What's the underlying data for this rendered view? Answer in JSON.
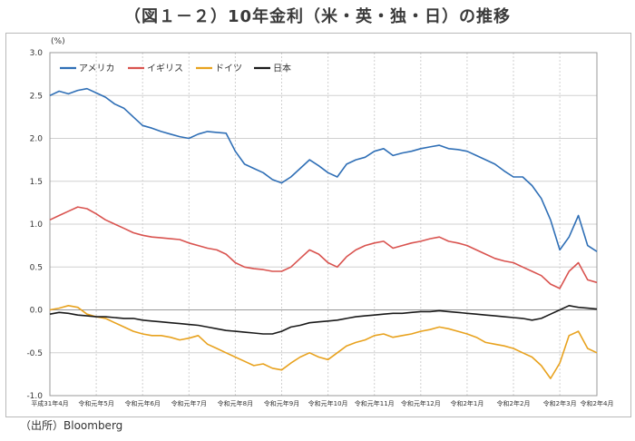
{
  "title": "（図１－２）10年金利（米・英・独・日）の推移",
  "source": "（出所）Bloomberg",
  "colors": {
    "usa": "#2f6fb6",
    "uk": "#d9534f",
    "germany": "#e8a21e",
    "japan": "#1a1a1a",
    "grid": "#d0d0d0"
  },
  "chart_data": {
    "type": "line",
    "ylabel": "(%)",
    "ylim": [
      -1.0,
      3.0
    ],
    "yticks": [
      "3.0",
      "2.5",
      "2.0",
      "1.5",
      "1.0",
      "0.5",
      "0.0",
      "-0.5",
      "-1.0"
    ],
    "ytick_values": [
      3.0,
      2.5,
      2.0,
      1.5,
      1.0,
      0.5,
      0.0,
      -0.5,
      -1.0
    ],
    "x_count": 60,
    "x_ticks": [
      {
        "i": 0,
        "label": "平成31年4月"
      },
      {
        "i": 5,
        "label": "令和元年5月"
      },
      {
        "i": 10,
        "label": "令和元年6月"
      },
      {
        "i": 15,
        "label": "令和元年7月"
      },
      {
        "i": 20,
        "label": "令和元年8月"
      },
      {
        "i": 25,
        "label": "令和元年9月"
      },
      {
        "i": 30,
        "label": "令和元年10月"
      },
      {
        "i": 35,
        "label": "令和元年11月"
      },
      {
        "i": 40,
        "label": "令和元年12月"
      },
      {
        "i": 45,
        "label": "令和2年1月"
      },
      {
        "i": 50,
        "label": "令和2年2月"
      },
      {
        "i": 55,
        "label": "令和2年3月"
      },
      {
        "i": 59,
        "label": "令和2年4月"
      }
    ],
    "legend_position": "top-left",
    "series": [
      {
        "key": "usa",
        "name": "アメリカ",
        "values": [
          2.5,
          2.55,
          2.52,
          2.56,
          2.58,
          2.53,
          2.48,
          2.4,
          2.35,
          2.25,
          2.15,
          2.12,
          2.08,
          2.05,
          2.02,
          2.0,
          2.05,
          2.08,
          2.07,
          2.06,
          1.85,
          1.7,
          1.65,
          1.6,
          1.52,
          1.48,
          1.55,
          1.65,
          1.75,
          1.68,
          1.6,
          1.55,
          1.7,
          1.75,
          1.78,
          1.85,
          1.88,
          1.8,
          1.83,
          1.85,
          1.88,
          1.9,
          1.92,
          1.88,
          1.87,
          1.85,
          1.8,
          1.75,
          1.7,
          1.62,
          1.55,
          1.55,
          1.45,
          1.3,
          1.05,
          0.7,
          0.85,
          1.1,
          0.75,
          0.68
        ]
      },
      {
        "key": "uk",
        "name": "イギリス",
        "values": [
          1.05,
          1.1,
          1.15,
          1.2,
          1.18,
          1.12,
          1.05,
          1.0,
          0.95,
          0.9,
          0.87,
          0.85,
          0.84,
          0.83,
          0.82,
          0.78,
          0.75,
          0.72,
          0.7,
          0.65,
          0.55,
          0.5,
          0.48,
          0.47,
          0.45,
          0.45,
          0.5,
          0.6,
          0.7,
          0.65,
          0.55,
          0.5,
          0.62,
          0.7,
          0.75,
          0.78,
          0.8,
          0.72,
          0.75,
          0.78,
          0.8,
          0.83,
          0.85,
          0.8,
          0.78,
          0.75,
          0.7,
          0.65,
          0.6,
          0.57,
          0.55,
          0.5,
          0.45,
          0.4,
          0.3,
          0.25,
          0.45,
          0.55,
          0.35,
          0.32
        ]
      },
      {
        "key": "germany",
        "name": "ドイツ",
        "values": [
          0.0,
          0.02,
          0.05,
          0.03,
          -0.05,
          -0.08,
          -0.1,
          -0.15,
          -0.2,
          -0.25,
          -0.28,
          -0.3,
          -0.3,
          -0.32,
          -0.35,
          -0.33,
          -0.3,
          -0.4,
          -0.45,
          -0.5,
          -0.55,
          -0.6,
          -0.65,
          -0.63,
          -0.68,
          -0.7,
          -0.62,
          -0.55,
          -0.5,
          -0.55,
          -0.58,
          -0.5,
          -0.42,
          -0.38,
          -0.35,
          -0.3,
          -0.28,
          -0.32,
          -0.3,
          -0.28,
          -0.25,
          -0.23,
          -0.2,
          -0.22,
          -0.25,
          -0.28,
          -0.32,
          -0.38,
          -0.4,
          -0.42,
          -0.45,
          -0.5,
          -0.55,
          -0.65,
          -0.8,
          -0.62,
          -0.3,
          -0.25,
          -0.45,
          -0.5
        ]
      },
      {
        "key": "japan",
        "name": "日本",
        "values": [
          -0.05,
          -0.03,
          -0.04,
          -0.06,
          -0.07,
          -0.08,
          -0.08,
          -0.09,
          -0.1,
          -0.1,
          -0.12,
          -0.13,
          -0.14,
          -0.15,
          -0.16,
          -0.17,
          -0.18,
          -0.2,
          -0.22,
          -0.24,
          -0.25,
          -0.26,
          -0.27,
          -0.28,
          -0.28,
          -0.25,
          -0.2,
          -0.18,
          -0.15,
          -0.14,
          -0.13,
          -0.12,
          -0.1,
          -0.08,
          -0.07,
          -0.06,
          -0.05,
          -0.04,
          -0.04,
          -0.03,
          -0.02,
          -0.02,
          -0.01,
          -0.02,
          -0.03,
          -0.04,
          -0.05,
          -0.06,
          -0.07,
          -0.08,
          -0.09,
          -0.1,
          -0.12,
          -0.1,
          -0.05,
          0.0,
          0.05,
          0.03,
          0.02,
          0.01
        ]
      }
    ]
  }
}
